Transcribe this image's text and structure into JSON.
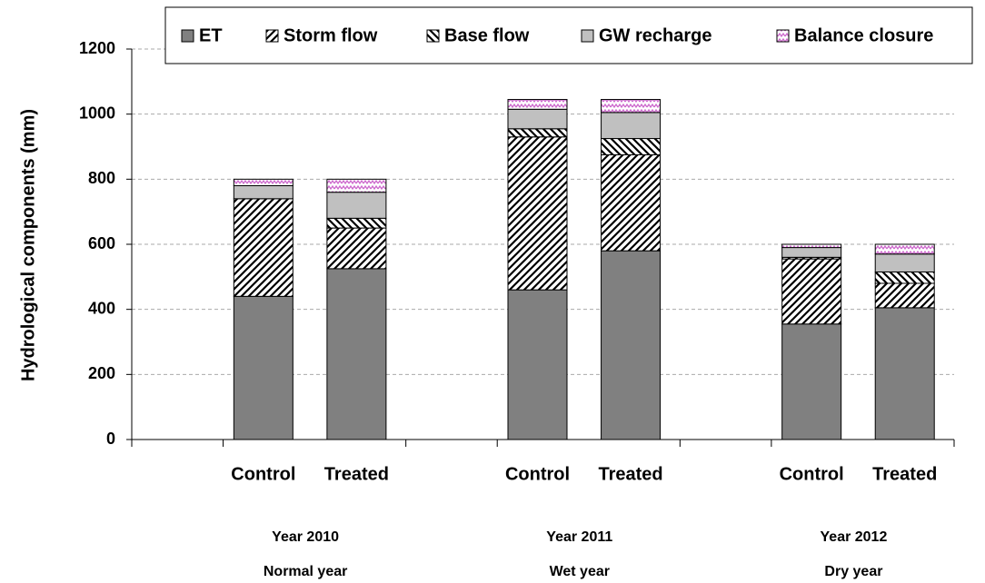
{
  "chart_data": {
    "type": "stacked_bar",
    "y_label": "Hydrological components (mm)",
    "categories": [
      "Control",
      "Treated",
      "Control",
      "Treated",
      "Control",
      "Treated"
    ],
    "groups": [
      [
        "Year 2010",
        "Normal year"
      ],
      [
        "Year 2011",
        "Wet year"
      ],
      [
        "Year 2012",
        "Dry year"
      ]
    ],
    "series": [
      {
        "name": "ET",
        "color": "#808080",
        "pattern": "solid",
        "values": [
          440,
          525,
          460,
          580,
          355,
          405
        ]
      },
      {
        "name": "Storm flow",
        "color": "#000000",
        "pattern": "diagonal",
        "values": [
          300,
          125,
          470,
          295,
          200,
          75
        ]
      },
      {
        "name": "Base flow",
        "color": "#000000",
        "pattern": "back-diagonal",
        "values": [
          0,
          30,
          25,
          50,
          5,
          35
        ]
      },
      {
        "name": "GW recharge",
        "color": "#c0c0c0",
        "pattern": "solid",
        "values": [
          40,
          80,
          60,
          80,
          30,
          55
        ]
      },
      {
        "name": "Balance closure",
        "color": "#cc66cc",
        "pattern": "zigzag",
        "values": [
          20,
          40,
          30,
          40,
          10,
          30
        ]
      }
    ],
    "ylim": [
      0,
      1200
    ],
    "yticks": [
      0,
      200,
      400,
      600,
      800,
      1000,
      1200
    ],
    "grid": true,
    "legend": "top"
  }
}
